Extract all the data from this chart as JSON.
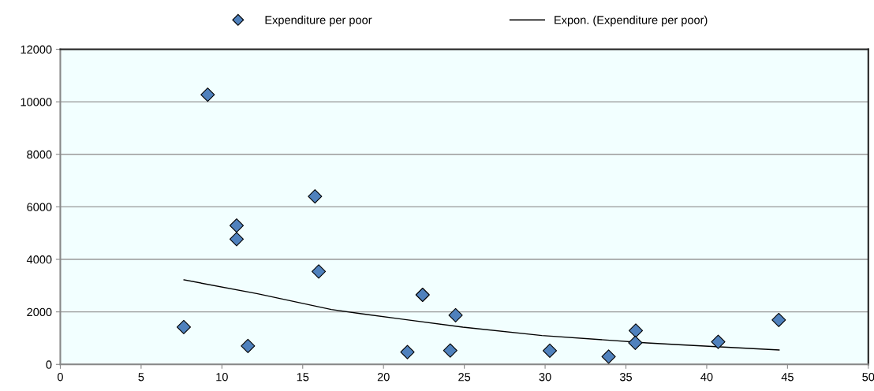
{
  "chart_data": {
    "type": "scatter",
    "series": [
      {
        "name": "Expenditure per poor",
        "marker": "diamond",
        "color": "#4f81bd",
        "x": [
          9.12,
          15.76,
          10.91,
          10.91,
          15.99,
          7.64,
          11.61,
          22.42,
          24.46,
          21.48,
          24.13,
          30.29,
          33.93,
          35.61,
          35.58,
          40.71,
          44.46
        ],
        "values": [
          10270,
          6400,
          5290,
          4770,
          3540,
          1420,
          700,
          2650,
          1870,
          470,
          530,
          520,
          300,
          1290,
          820,
          860,
          1690
        ]
      },
      {
        "name": "Expon. (Expenditure per poor)",
        "type": "line",
        "marker": "none",
        "color": "#000000",
        "x": [
          7.65,
          12.21,
          16.77,
          18.72,
          24.91,
          29.8,
          36.3,
          38.26,
          44.48
        ],
        "values": [
          3220,
          2690,
          2090,
          1920,
          1420,
          1100,
          820,
          750,
          550
        ]
      }
    ],
    "xlim": [
      0,
      50
    ],
    "xticks": [
      0,
      5,
      10,
      15,
      20,
      25,
      30,
      35,
      40,
      45,
      50
    ],
    "ylim": [
      0,
      12000
    ],
    "yticks": [
      0,
      2000,
      4000,
      6000,
      8000,
      10000,
      12000
    ],
    "grid": "y",
    "legend": "top"
  }
}
